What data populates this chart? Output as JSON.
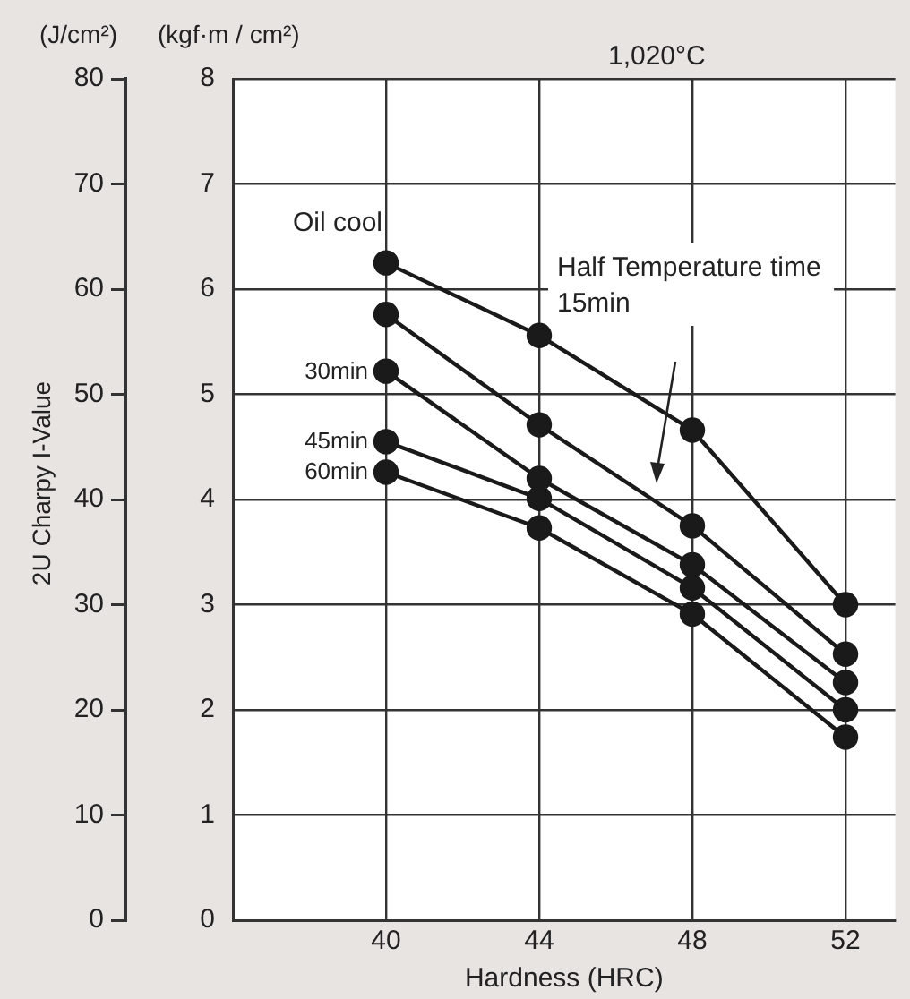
{
  "chart_data": {
    "type": "line",
    "title": "1,020°C",
    "xlabel": "Hardness (HRC)",
    "ylabel": "(kgf·m / cm²)",
    "y2label": "(J/cm²)",
    "annotations": [
      "2U Charpy I-Value",
      "Half Temperature time",
      "15min"
    ],
    "x": [
      40,
      44,
      48,
      52
    ],
    "series": [
      {
        "name": "Oil cool",
        "color": "#1a1a1a",
        "values": [
          6.25,
          5.56,
          4.66,
          3.0
        ]
      },
      {
        "color": "#1a1a1a",
        "values": [
          5.76,
          4.71,
          3.75,
          2.53
        ]
      },
      {
        "name": "30min",
        "color": "#1a1a1a",
        "values": [
          5.22,
          4.2,
          3.38,
          2.26
        ]
      },
      {
        "name": "45min",
        "color": "#1a1a1a",
        "values": [
          4.55,
          4.01,
          3.16,
          2.0
        ]
      },
      {
        "name": "60min",
        "color": "#1a1a1a",
        "values": [
          4.26,
          3.73,
          2.91,
          1.74
        ]
      }
    ],
    "xlim": [
      36,
      53.3
    ],
    "xticks": [
      40,
      44,
      48,
      52
    ],
    "ylim": [
      0,
      8
    ],
    "yticks": [
      0,
      1,
      2,
      3,
      4,
      5,
      6,
      7,
      8
    ],
    "y2lim": [
      0,
      80
    ],
    "y2ticks": [
      0,
      10,
      20,
      30,
      40,
      50,
      60,
      70,
      80
    ],
    "grid": true,
    "legend": false,
    "marker": "circle",
    "line_style": "solid"
  }
}
